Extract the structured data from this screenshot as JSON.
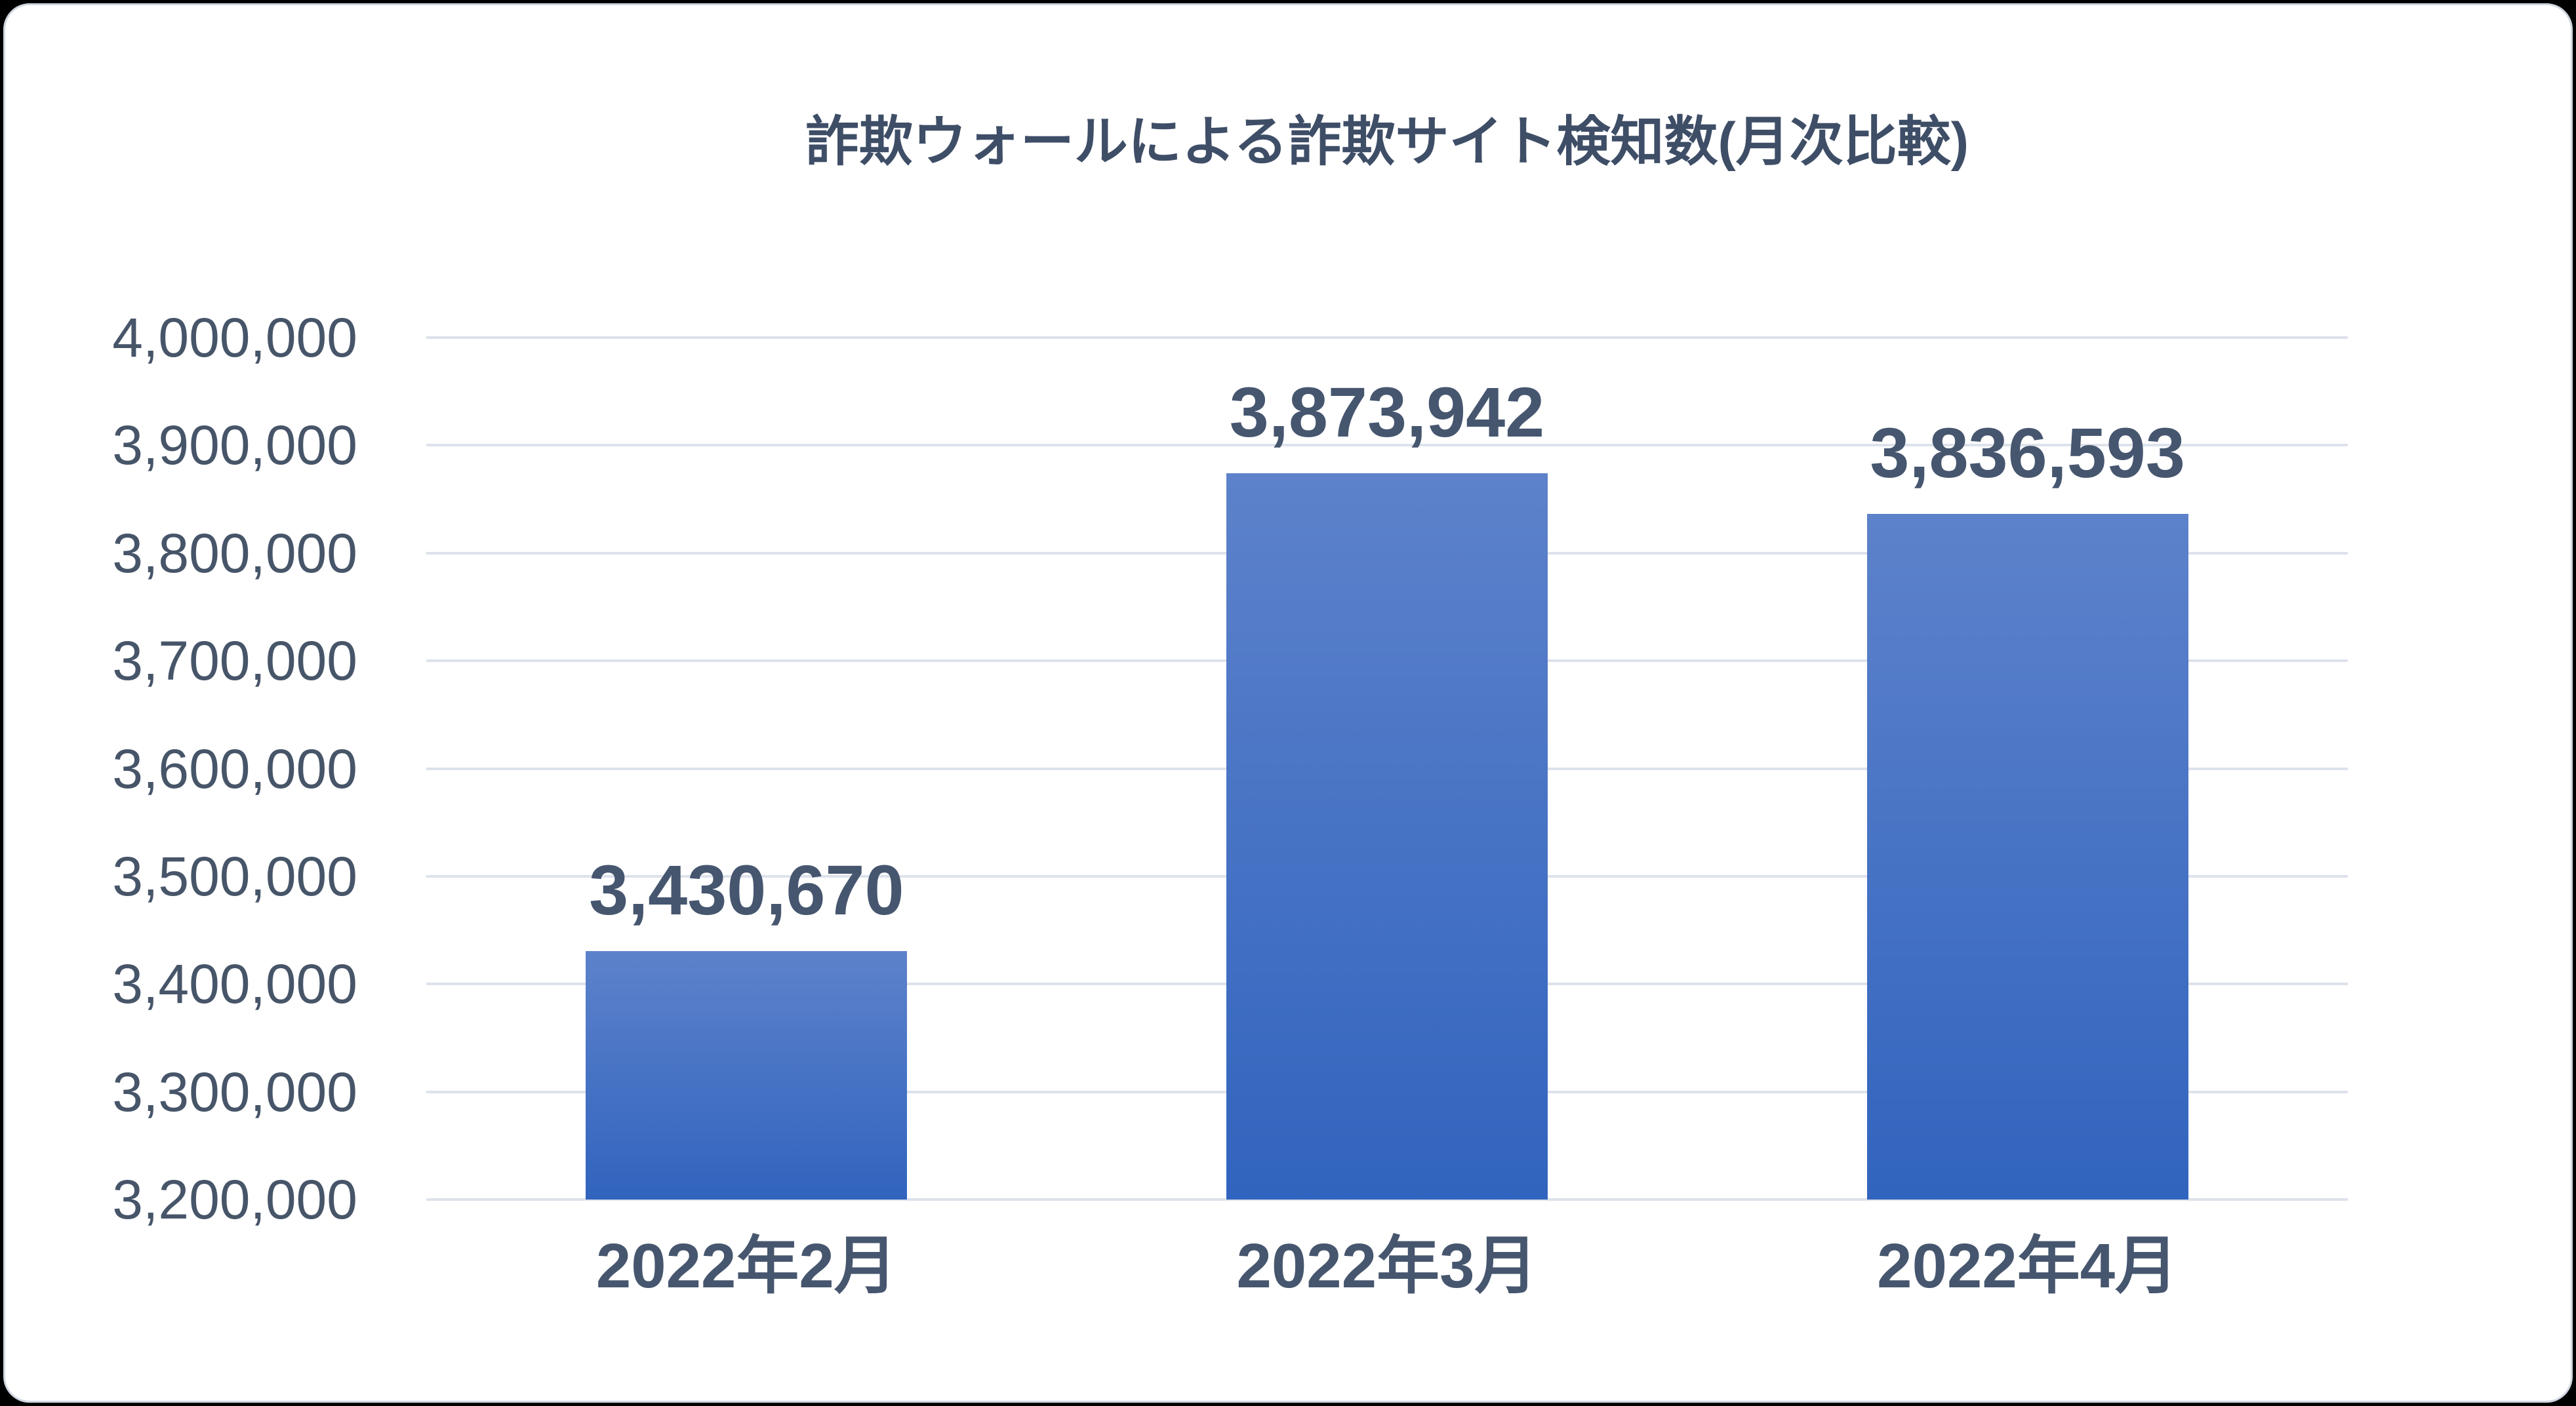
{
  "page": {
    "background_color": "#000000",
    "card_background": "#ffffff",
    "card_border_color": "#cfd6e0"
  },
  "chart_data": {
    "type": "bar",
    "title": "詐欺ウォールによる詐欺サイト検知数(月次比較)",
    "categories": [
      "2022年2月",
      "2022年3月",
      "2022年4月"
    ],
    "values": [
      3430670,
      3873942,
      3836593
    ],
    "value_labels": [
      "3,430,670",
      "3,873,942",
      "3,836,593"
    ],
    "xlabel": "",
    "ylabel": "",
    "y_axis": {
      "min": 3200000,
      "max": 4000000,
      "step": 100000,
      "tick_labels": [
        "4,000,000",
        "3,900,000",
        "3,800,000",
        "3,700,000",
        "3,600,000",
        "3,500,000",
        "3,400,000",
        "3,300,000",
        "3,200,000"
      ]
    },
    "grid": true,
    "legend": false,
    "colors": {
      "bar_gradient_top": "#5d82cb",
      "bar_gradient_bottom": "#3164be",
      "gridline": "#dde2eb",
      "label_text": "#46566f",
      "title_text": "#3f4e67"
    }
  }
}
